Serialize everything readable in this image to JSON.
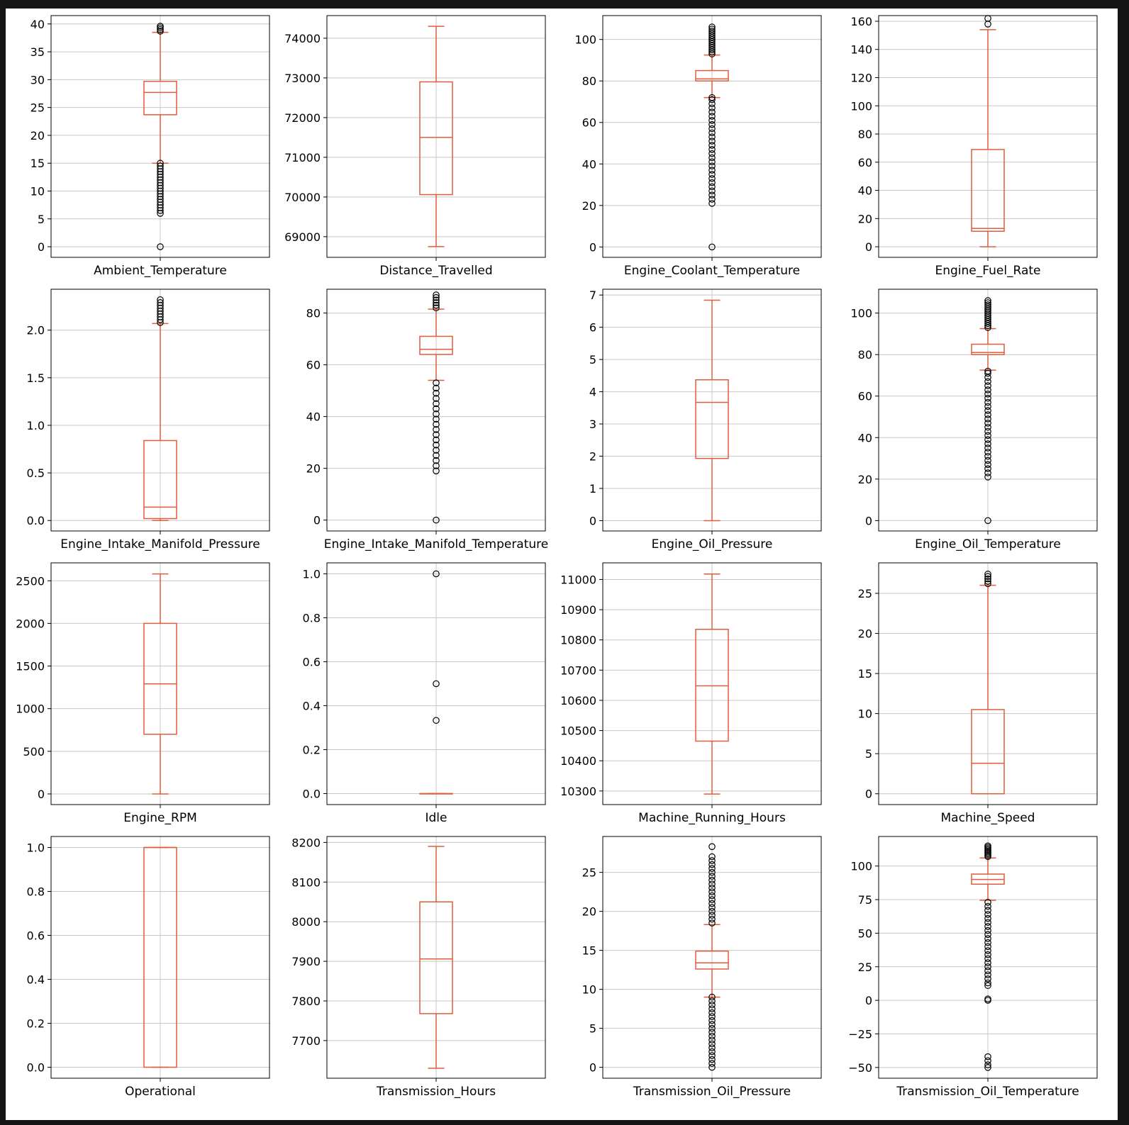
{
  "colors": {
    "box": "#e05d3c",
    "grid": "#c8c8c8",
    "frame": "#000000",
    "outlier": "#000000"
  },
  "chart_data": [
    {
      "type": "box",
      "xlabel": "Ambient_Temperature",
      "ylim": [
        -1.9,
        41.5
      ],
      "yticks": [
        0,
        5,
        10,
        15,
        20,
        25,
        30,
        35,
        40
      ],
      "whisker_low": 15.0,
      "q1": 23.7,
      "median": 27.7,
      "q3": 29.7,
      "whisker_high": 38.5,
      "outliers": [
        0,
        6,
        6.5,
        7,
        7.5,
        8,
        8.5,
        9,
        9.5,
        10,
        10.5,
        11,
        11.5,
        12,
        12.5,
        13,
        13.5,
        14,
        14.5,
        15,
        38.7,
        39,
        39.3,
        39.6
      ]
    },
    {
      "type": "box",
      "xlabel": "Distance_Travelled",
      "ylim": [
        68480,
        74570
      ],
      "yticks": [
        69000,
        70000,
        71000,
        72000,
        73000,
        74000
      ],
      "whisker_low": 68750,
      "q1": 70060,
      "median": 71500,
      "q3": 72900,
      "whisker_high": 74300,
      "outliers": []
    },
    {
      "type": "box",
      "xlabel": "Engine_Coolant_Temperature",
      "ylim": [
        -5.0,
        111.5
      ],
      "yticks": [
        0,
        20,
        40,
        60,
        80,
        100
      ],
      "whisker_low": 72,
      "q1": 80,
      "median": 81,
      "q3": 85,
      "whisker_high": 92.5,
      "outliers": [
        0,
        21,
        23,
        25,
        27,
        29,
        31,
        33,
        35,
        37,
        39,
        41,
        43,
        45,
        47,
        49,
        51,
        53,
        55,
        57,
        59,
        61,
        63,
        65,
        67,
        69,
        71,
        72,
        93,
        94,
        95,
        96,
        97,
        98,
        99,
        100,
        101,
        102,
        103,
        104,
        105,
        106
      ]
    },
    {
      "type": "box",
      "xlabel": "Engine_Fuel_Rate",
      "ylim": [
        -7.5,
        164
      ],
      "yticks": [
        0,
        20,
        40,
        60,
        80,
        100,
        120,
        140,
        160
      ],
      "whisker_low": 0,
      "q1": 11,
      "median": 13,
      "q3": 69,
      "whisker_high": 154,
      "outliers": [
        158,
        162
      ]
    },
    {
      "type": "box",
      "xlabel": "Engine_Intake_Manifold_Pressure",
      "ylim": [
        -0.11,
        2.43
      ],
      "yticks": [
        0.0,
        0.5,
        1.0,
        1.5,
        2.0
      ],
      "whisker_low": 0,
      "q1": 0.02,
      "median": 0.14,
      "q3": 0.84,
      "whisker_high": 2.07,
      "outliers": [
        2.08,
        2.11,
        2.14,
        2.17,
        2.2,
        2.23,
        2.26,
        2.29,
        2.32
      ]
    },
    {
      "type": "box",
      "xlabel": "Engine_Intake_Manifold_Temperature",
      "ylim": [
        -4.2,
        89.2
      ],
      "yticks": [
        0,
        20,
        40,
        60,
        80
      ],
      "whisker_low": 54,
      "q1": 64,
      "median": 66,
      "q3": 71,
      "whisker_high": 81.5,
      "outliers": [
        0,
        19,
        21,
        23,
        25,
        27,
        29,
        31,
        33,
        35,
        37,
        39,
        41,
        43,
        45,
        47,
        49,
        51,
        53,
        82,
        83,
        84,
        85,
        86,
        87
      ]
    },
    {
      "type": "box",
      "xlabel": "Engine_Oil_Pressure",
      "ylim": [
        -0.32,
        7.18
      ],
      "yticks": [
        0,
        1,
        2,
        3,
        4,
        5,
        6,
        7
      ],
      "whisker_low": 0,
      "q1": 1.93,
      "median": 3.67,
      "q3": 4.37,
      "whisker_high": 6.84,
      "outliers": []
    },
    {
      "type": "box",
      "xlabel": "Engine_Oil_Temperature",
      "ylim": [
        -5.0,
        111.5
      ],
      "yticks": [
        0,
        20,
        40,
        60,
        80,
        100
      ],
      "whisker_low": 72.5,
      "q1": 80,
      "median": 81,
      "q3": 85,
      "whisker_high": 92.5,
      "outliers": [
        0,
        21,
        23,
        25,
        27,
        29,
        31,
        33,
        35,
        37,
        39,
        41,
        43,
        45,
        47,
        49,
        51,
        53,
        55,
        57,
        59,
        61,
        63,
        65,
        67,
        69,
        71,
        72,
        93,
        94,
        95,
        96,
        97,
        98,
        99,
        100,
        101,
        102,
        103,
        104,
        105,
        106
      ]
    },
    {
      "type": "box",
      "xlabel": "Engine_RPM",
      "ylim": [
        -125,
        2710
      ],
      "yticks": [
        0,
        500,
        1000,
        1500,
        2000,
        2500
      ],
      "whisker_low": 0,
      "q1": 700,
      "median": 1290,
      "q3": 2000,
      "whisker_high": 2580,
      "outliers": []
    },
    {
      "type": "box",
      "xlabel": "Idle",
      "ylim": [
        -0.05,
        1.05
      ],
      "yticks": [
        0.0,
        0.2,
        0.4,
        0.6,
        0.8,
        1.0
      ],
      "whisker_low": 0,
      "q1": 0,
      "median": 0,
      "q3": 0,
      "whisker_high": 0,
      "outliers": [
        0.333,
        0.5,
        1.0
      ]
    },
    {
      "type": "box",
      "xlabel": "Machine_Running_Hours",
      "ylim": [
        10255,
        11055
      ],
      "yticks": [
        10300,
        10400,
        10500,
        10600,
        10700,
        10800,
        10900,
        11000
      ],
      "whisker_low": 10290,
      "q1": 10465,
      "median": 10648,
      "q3": 10835,
      "whisker_high": 11018,
      "outliers": []
    },
    {
      "type": "box",
      "xlabel": "Machine_Speed",
      "ylim": [
        -1.35,
        28.8
      ],
      "yticks": [
        0,
        5,
        10,
        15,
        20,
        25
      ],
      "whisker_low": 0,
      "q1": 0,
      "median": 3.8,
      "q3": 10.5,
      "whisker_high": 26,
      "outliers": [
        26.2,
        26.5,
        26.8,
        27.1,
        27.4
      ]
    },
    {
      "type": "box",
      "xlabel": "Operational",
      "ylim": [
        -0.05,
        1.05
      ],
      "yticks": [
        0.0,
        0.2,
        0.4,
        0.6,
        0.8,
        1.0
      ],
      "whisker_low": 0,
      "q1": 0,
      "median": 1.0,
      "q3": 1.0,
      "whisker_high": 1.0,
      "outliers": []
    },
    {
      "type": "box",
      "xlabel": "Transmission_Hours",
      "ylim": [
        7605,
        8215
      ],
      "yticks": [
        7700,
        7800,
        7900,
        8000,
        8100,
        8200
      ],
      "whisker_low": 7630,
      "q1": 7768,
      "median": 7906,
      "q3": 8050,
      "whisker_high": 8190,
      "outliers": []
    },
    {
      "type": "box",
      "xlabel": "Transmission_Oil_Pressure",
      "ylim": [
        -1.4,
        29.6
      ],
      "yticks": [
        0,
        5,
        10,
        15,
        20,
        25
      ],
      "whisker_low": 9,
      "q1": 12.6,
      "median": 13.4,
      "q3": 14.9,
      "whisker_high": 18.3,
      "outliers": [
        0,
        0.5,
        1,
        1.5,
        2,
        2.5,
        3,
        3.5,
        4,
        4.5,
        5,
        5.5,
        6,
        6.5,
        7,
        7.5,
        8,
        8.5,
        9,
        18.5,
        19,
        19.5,
        20,
        20.5,
        21,
        21.5,
        22,
        22.5,
        23,
        23.5,
        24,
        24.5,
        25,
        25.5,
        26,
        26.5,
        27,
        28.3
      ]
    },
    {
      "type": "box",
      "xlabel": "Transmission_Oil_Temperature",
      "ylim": [
        -58,
        122
      ],
      "yticks": [
        -50,
        -25,
        0,
        25,
        50,
        75,
        100
      ],
      "whisker_low": 74.5,
      "q1": 86.5,
      "median": 90,
      "q3": 94,
      "whisker_high": 106,
      "outliers": [
        -50,
        -48,
        -45,
        -42,
        0,
        1,
        11,
        13,
        16,
        19,
        22,
        25,
        28,
        31,
        34,
        37,
        40,
        43,
        46,
        49,
        52,
        55,
        58,
        61,
        64,
        67,
        70,
        73,
        107,
        108,
        109,
        110,
        111,
        112,
        113,
        114,
        115
      ]
    }
  ]
}
